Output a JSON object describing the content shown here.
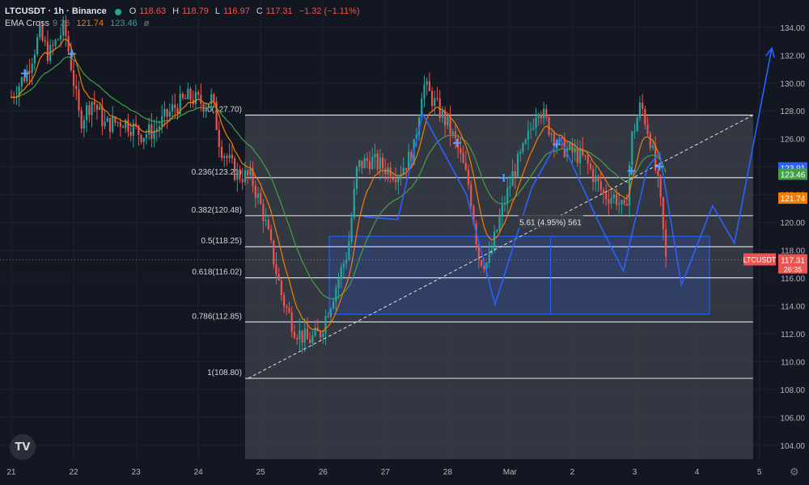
{
  "header": {
    "symbol": "LTCUSDT · 1h · Binance",
    "status_color": "#26a69a",
    "ohlc": [
      {
        "label": "O",
        "value": "118.63"
      },
      {
        "label": "H",
        "value": "118.79"
      },
      {
        "label": "L",
        "value": "116.97"
      },
      {
        "label": "C",
        "value": "117.31"
      },
      {
        "label": "",
        "value": "−1.32 (−1.11%)"
      }
    ],
    "ema": {
      "name": "EMA Cross",
      "params": "9 26",
      "fast": "121.74",
      "slow": "123.46",
      "visibility_icon": "eye-slash-icon"
    }
  },
  "logo_text": "TV",
  "settings_icon": "gear-icon",
  "colors": {
    "background": "#131722",
    "up": "#26a69a",
    "down": "#ef5350",
    "ema_fast": "#f57c00",
    "ema_slow": "#43a047",
    "drawing": "#2962ff",
    "fib_line": "#d1d4dc",
    "grid": "#1e222d"
  },
  "chart_data": {
    "type": "candlestick",
    "timeframe": "1h",
    "x_ticks": [
      "21",
      "22",
      "23",
      "24",
      "25",
      "26",
      "27",
      "28",
      "Mar",
      "2",
      "3",
      "4",
      "5"
    ],
    "y_ticks": [
      104,
      106,
      108,
      110,
      112,
      114,
      116,
      118,
      120,
      122,
      124,
      126,
      128,
      130,
      132,
      134
    ],
    "ylim": [
      103,
      135.5
    ],
    "xlim": [
      -0.05,
      12.7
    ],
    "last_price": {
      "symbol": "LTCUSDT",
      "price": "117.31",
      "countdown": "26:35"
    },
    "ema_badges": [
      {
        "value": "123.91",
        "color": "#2962ff"
      },
      {
        "value": "123.46",
        "color": "#43a047"
      },
      {
        "value": "121.74",
        "color": "#f57c00"
      }
    ],
    "fibonacci": [
      {
        "label": "0(127.70)",
        "price": 127.7
      },
      {
        "label": "0.236(123.21)",
        "price": 123.21
      },
      {
        "label": "0.382(120.48)",
        "price": 120.48
      },
      {
        "label": "0.5(118.25)",
        "price": 118.25
      },
      {
        "label": "0.618(116.02)",
        "price": 116.02
      },
      {
        "label": "0.786(112.85)",
        "price": 112.85
      },
      {
        "label": "1(108.80)",
        "price": 108.8
      }
    ],
    "measure": {
      "label": "5.61 (4.95%) 561",
      "price_low": 113.4,
      "price_high": 119.0,
      "x_start": 5.1,
      "x_end": 11.2
    },
    "trendline": {
      "x1": 3.8,
      "y1": 108.8,
      "x2": 11.9,
      "y2": 127.7
    },
    "pattern_path": [
      [
        5.65,
        120.4
      ],
      [
        6.2,
        120.2
      ],
      [
        6.6,
        127.8
      ],
      [
        7.3,
        122
      ],
      [
        7.76,
        114.1
      ],
      [
        8.35,
        122.5
      ],
      [
        8.8,
        126.1
      ],
      [
        9.4,
        120.2
      ],
      [
        9.82,
        116.5
      ],
      [
        10.2,
        123.9
      ],
      [
        10.4,
        125
      ],
      [
        10.75,
        115.5
      ],
      [
        11.25,
        121.2
      ],
      [
        11.6,
        118.5
      ],
      [
        12.2,
        132.5
      ]
    ],
    "cross_markers": [
      [
        0.22,
        130.7
      ],
      [
        0.97,
        132.1
      ],
      [
        7.15,
        125.7
      ],
      [
        7.9,
        123.2
      ],
      [
        8.75,
        125.6
      ],
      [
        9.95,
        123.7
      ],
      [
        10.4,
        124
      ]
    ],
    "candle_anchors": [
      [
        0,
        129
      ],
      [
        0.25,
        130.8
      ],
      [
        0.45,
        133.5
      ],
      [
        0.6,
        132
      ],
      [
        0.85,
        134
      ],
      [
        0.97,
        131
      ],
      [
        1.1,
        127.2
      ],
      [
        1.3,
        128.8
      ],
      [
        1.5,
        127
      ],
      [
        1.8,
        127.3
      ],
      [
        2.1,
        126.3
      ],
      [
        2.3,
        126.6
      ],
      [
        2.6,
        128.2
      ],
      [
        2.85,
        129
      ],
      [
        3.1,
        128.5
      ],
      [
        3.22,
        128.9
      ],
      [
        3.35,
        125.5
      ],
      [
        3.6,
        123.5
      ],
      [
        3.85,
        123.2
      ],
      [
        4.05,
        120.5
      ],
      [
        4.2,
        117.5
      ],
      [
        4.35,
        114.5
      ],
      [
        4.55,
        112.3
      ],
      [
        4.75,
        111.5
      ],
      [
        4.95,
        112
      ],
      [
        5.2,
        115.3
      ],
      [
        5.4,
        118
      ],
      [
        5.55,
        124
      ],
      [
        5.75,
        124.5
      ],
      [
        5.95,
        124
      ],
      [
        6.2,
        123.5
      ],
      [
        6.45,
        125
      ],
      [
        6.6,
        130
      ],
      [
        6.8,
        128.5
      ],
      [
        7.0,
        127
      ],
      [
        7.15,
        125.5
      ],
      [
        7.35,
        122.5
      ],
      [
        7.5,
        117.5
      ],
      [
        7.65,
        117
      ],
      [
        7.85,
        120.5
      ],
      [
        8.05,
        123.5
      ],
      [
        8.25,
        125.5
      ],
      [
        8.45,
        128.5
      ],
      [
        8.6,
        127
      ],
      [
        8.8,
        125.5
      ],
      [
        9.0,
        125
      ],
      [
        9.2,
        124.5
      ],
      [
        9.5,
        122
      ],
      [
        9.7,
        121.8
      ],
      [
        9.85,
        120.5
      ],
      [
        9.95,
        126
      ],
      [
        10.1,
        128.5
      ],
      [
        10.25,
        126
      ],
      [
        10.4,
        122
      ],
      [
        10.5,
        117.3
      ]
    ]
  }
}
